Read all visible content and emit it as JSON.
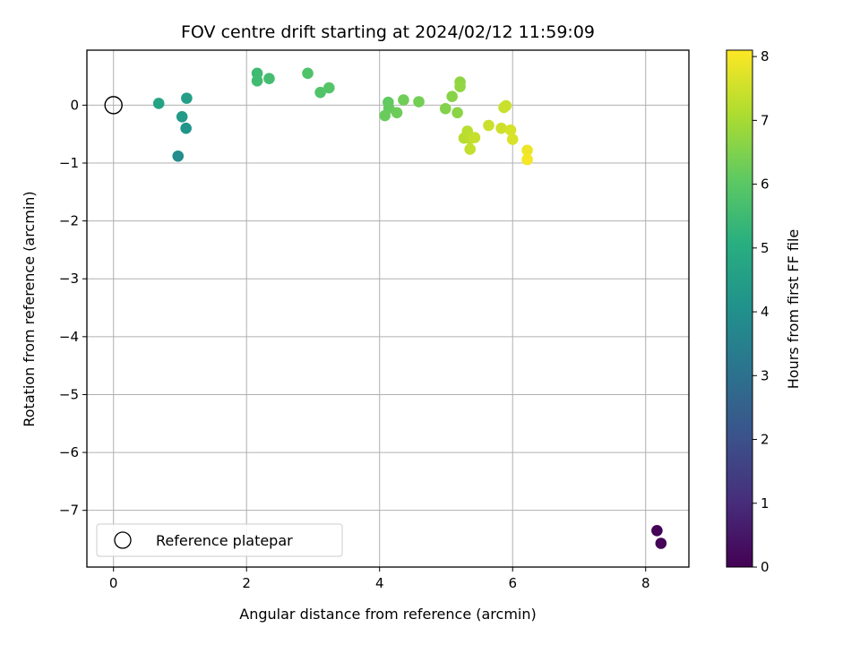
{
  "chart_data": {
    "type": "scatter",
    "title": "FOV centre drift starting at 2024/02/12 11:59:09",
    "xlabel": "Angular distance from reference (arcmin)",
    "ylabel": "Rotation from reference (arcmin)",
    "xlim": [
      -0.4,
      8.65
    ],
    "ylim": [
      -7.98,
      0.95
    ],
    "xticks": [
      0,
      2,
      4,
      6,
      8
    ],
    "yticks": [
      0,
      -1,
      -2,
      -3,
      -4,
      -5,
      -6,
      -7
    ],
    "grid": true,
    "colorbar": {
      "label": "Hours from first FF file",
      "colormap": "viridis",
      "range": [
        0,
        8.1
      ],
      "ticks": [
        0,
        1,
        2,
        3,
        4,
        5,
        6,
        7,
        8
      ]
    },
    "reference": {
      "x": 0,
      "y": 0,
      "label": "Reference platepar"
    },
    "legend": {
      "position": "lower-left",
      "entries": [
        "Reference platepar"
      ]
    },
    "points": [
      {
        "x": 8.17,
        "y": -7.35,
        "t": 0.05
      },
      {
        "x": 8.23,
        "y": -7.57,
        "t": 0.1
      },
      {
        "x": 0.97,
        "y": -0.88,
        "t": 3.9
      },
      {
        "x": 1.09,
        "y": -0.4,
        "t": 4.2
      },
      {
        "x": 1.03,
        "y": -0.2,
        "t": 4.4
      },
      {
        "x": 1.1,
        "y": 0.12,
        "t": 4.5
      },
      {
        "x": 0.68,
        "y": 0.03,
        "t": 4.7
      },
      {
        "x": 2.16,
        "y": 0.55,
        "t": 5.5
      },
      {
        "x": 2.16,
        "y": 0.42,
        "t": 5.55
      },
      {
        "x": 2.34,
        "y": 0.46,
        "t": 5.6
      },
      {
        "x": 2.92,
        "y": 0.55,
        "t": 5.8
      },
      {
        "x": 3.11,
        "y": 0.22,
        "t": 5.85
      },
      {
        "x": 3.24,
        "y": 0.3,
        "t": 5.9
      },
      {
        "x": 4.13,
        "y": 0.05,
        "t": 6.1
      },
      {
        "x": 4.14,
        "y": -0.05,
        "t": 6.15
      },
      {
        "x": 4.08,
        "y": -0.18,
        "t": 6.2
      },
      {
        "x": 4.26,
        "y": -0.13,
        "t": 6.25
      },
      {
        "x": 4.36,
        "y": 0.09,
        "t": 6.3
      },
      {
        "x": 4.59,
        "y": 0.06,
        "t": 6.35
      },
      {
        "x": 4.99,
        "y": -0.06,
        "t": 6.55
      },
      {
        "x": 5.09,
        "y": 0.15,
        "t": 6.6
      },
      {
        "x": 5.17,
        "y": -0.13,
        "t": 6.65
      },
      {
        "x": 5.21,
        "y": 0.4,
        "t": 6.7
      },
      {
        "x": 5.21,
        "y": 0.32,
        "t": 6.75
      },
      {
        "x": 5.27,
        "y": -0.57,
        "t": 7.2
      },
      {
        "x": 5.32,
        "y": -0.45,
        "t": 7.25
      },
      {
        "x": 5.36,
        "y": -0.58,
        "t": 7.3
      },
      {
        "x": 5.36,
        "y": -0.76,
        "t": 7.35
      },
      {
        "x": 5.43,
        "y": -0.56,
        "t": 7.4
      },
      {
        "x": 5.64,
        "y": -0.35,
        "t": 7.45
      },
      {
        "x": 5.83,
        "y": -0.4,
        "t": 7.5
      },
      {
        "x": 5.87,
        "y": -0.04,
        "t": 7.4
      },
      {
        "x": 5.9,
        "y": -0.01,
        "t": 7.45
      },
      {
        "x": 5.97,
        "y": -0.43,
        "t": 7.6
      },
      {
        "x": 6.0,
        "y": -0.59,
        "t": 7.65
      },
      {
        "x": 6.22,
        "y": -0.78,
        "t": 7.9
      },
      {
        "x": 6.22,
        "y": -0.94,
        "t": 8.0
      }
    ]
  }
}
